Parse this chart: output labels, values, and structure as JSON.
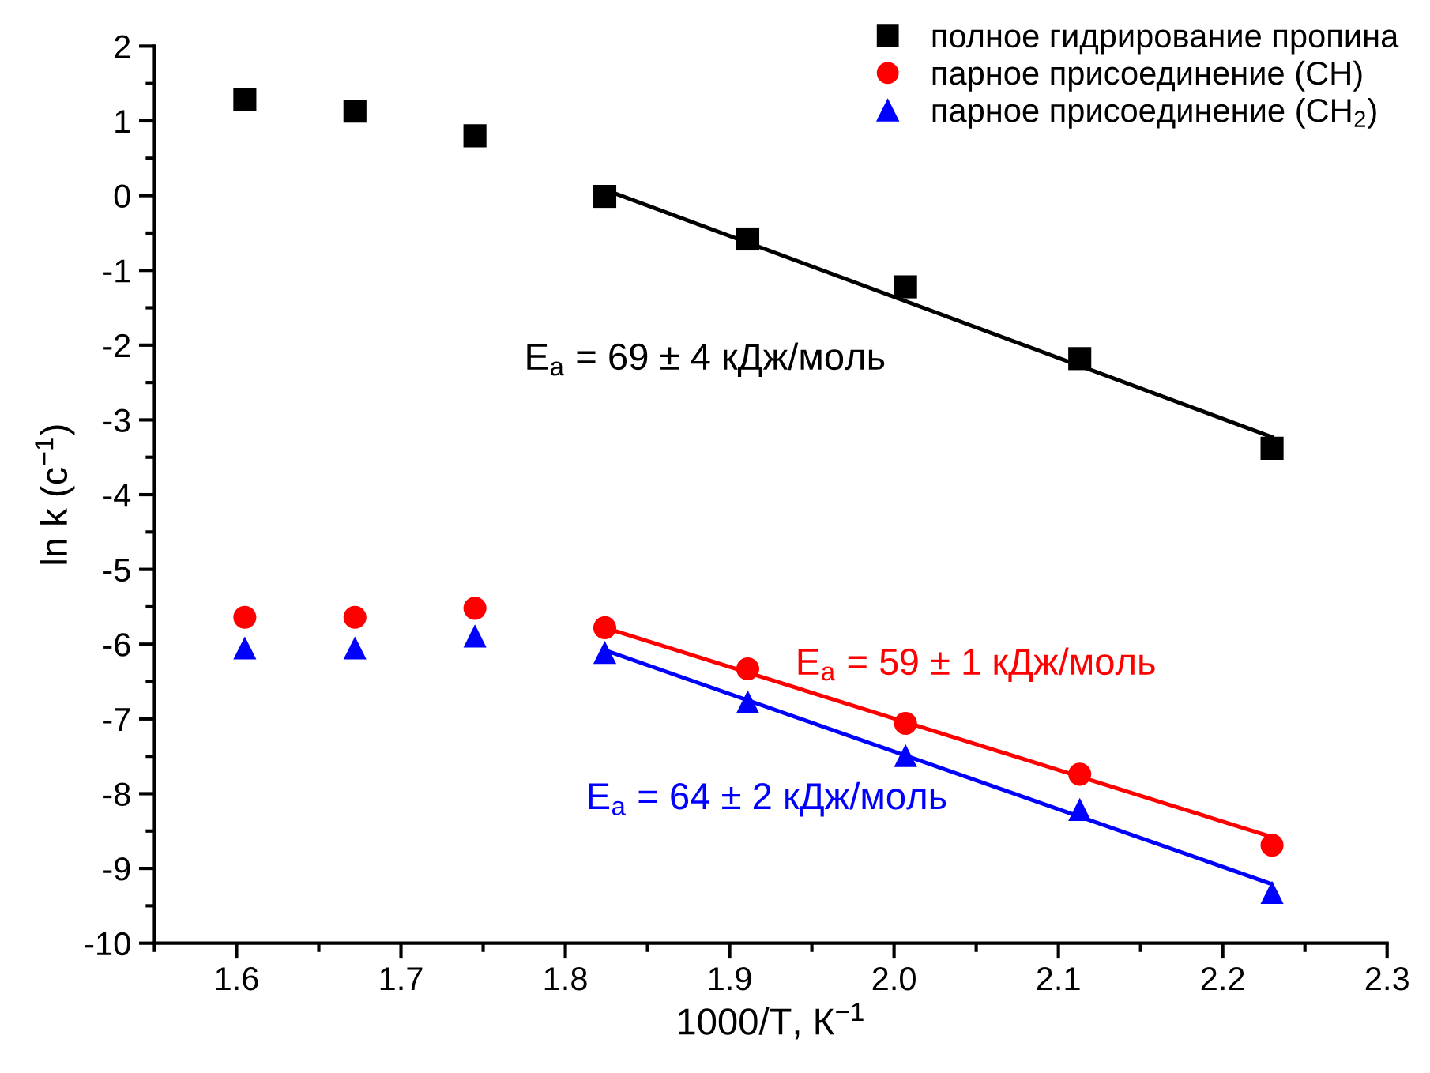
{
  "chart_data": {
    "type": "scatter",
    "xlabel": "1000/T, К$^{−1}$",
    "ylabel": "ln k (с$^{−1}$)",
    "xlim": [
      1.55,
      2.3
    ],
    "xticks": [
      1.6,
      1.7,
      1.8,
      1.9,
      {
        "value": 2.0,
        "label": "2.0"
      },
      2.1,
      2.2,
      2.3
    ],
    "ylim": [
      -10,
      2
    ],
    "yticks": [
      -10,
      -9,
      -8,
      -7,
      -6,
      -5,
      -4,
      -3,
      -2,
      -1,
      0,
      1,
      2
    ],
    "grid": false,
    "legend": "top right",
    "series": [
      {
        "name": "полное гидрирование пропина",
        "marker": "square",
        "color": "#000000",
        "x": [
          1.605,
          1.672,
          1.745,
          1.824,
          1.911,
          2.007,
          2.113,
          2.23
        ],
        "values": [
          1.28,
          1.13,
          0.8,
          -0.01,
          -0.58,
          -1.22,
          -2.18,
          -3.38
        ]
      },
      {
        "name": "парное присоединение (CH)",
        "marker": "circle",
        "color": "#ff0000",
        "x": [
          1.605,
          1.672,
          1.745,
          1.824,
          1.911,
          2.007,
          2.113,
          2.23
        ],
        "values": [
          -5.64,
          -5.64,
          -5.52,
          -5.78,
          -6.33,
          -7.06,
          -7.74,
          -8.69
        ]
      },
      {
        "name": "парное присоединение (CH$_{2}$)",
        "marker": "triangle",
        "color": "#0000ff",
        "x": [
          1.605,
          1.672,
          1.745,
          1.824,
          1.911,
          2.007,
          2.113,
          2.23
        ],
        "values": [
          -6.05,
          -6.05,
          -5.89,
          -6.11,
          -6.77,
          -7.49,
          -8.21,
          -9.32
        ]
      },
      {
        "type": "line",
        "color": "#000000",
        "x": [
          1.824,
          2.23
        ],
        "values": [
          0.08,
          -3.23
        ]
      },
      {
        "type": "line",
        "color": "#ff0000",
        "x": [
          1.824,
          2.23
        ],
        "values": [
          -5.78,
          -8.58
        ]
      },
      {
        "type": "line",
        "color": "#0000ff",
        "x": [
          1.824,
          2.23
        ],
        "values": [
          -6.08,
          -9.21
        ]
      }
    ],
    "annotations": [
      "E$_{a}$ = 69 ± 4 кДж/моль",
      "E$_{a}$ = 59 ± 1 кДж/моль",
      "E$_{a}$ = 64 ± 2 кДж/моль"
    ]
  }
}
